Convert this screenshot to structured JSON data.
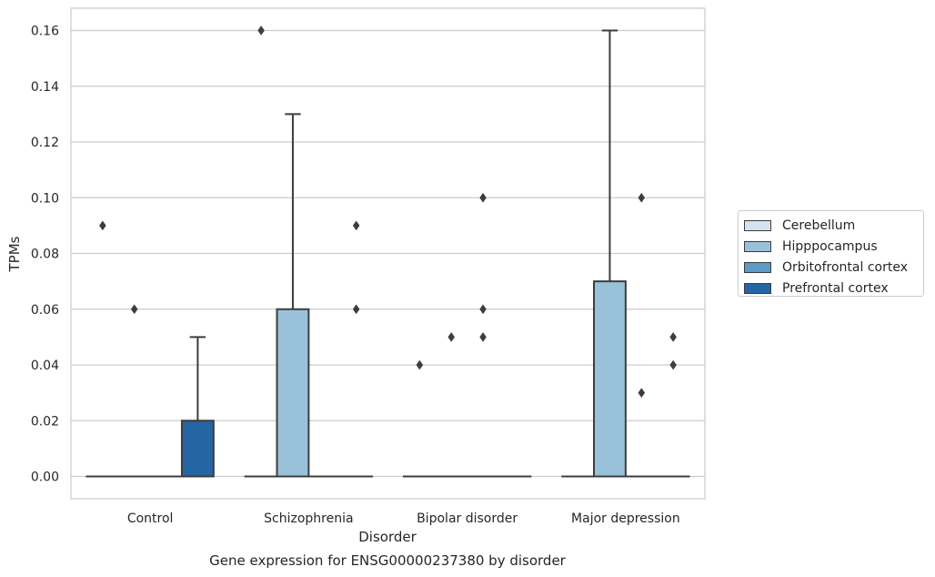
{
  "chart_data": {
    "type": "box",
    "title": "Gene expression for ENSG00000237380 by disorder",
    "xlabel": "Disorder",
    "ylabel": "TPMs",
    "ylim": [
      -0.008,
      0.168
    ],
    "yticks": [
      0.0,
      0.02,
      0.04,
      0.06,
      0.08,
      0.1,
      0.12,
      0.14,
      0.16
    ],
    "ytick_labels": [
      "0.00",
      "0.02",
      "0.04",
      "0.06",
      "0.08",
      "0.10",
      "0.12",
      "0.14",
      "0.16"
    ],
    "grid": "horizontal",
    "legend_position": "right",
    "categories": [
      "Control",
      "Schizophrenia",
      "Bipolar disorder",
      "Major depression"
    ],
    "series": [
      {
        "name": "Cerebellum",
        "color": "#d3e3f1",
        "boxes": [
          {
            "q1": 0.0,
            "median": 0.0,
            "q3": 0.0,
            "whisker_low": 0.0,
            "whisker_high": 0.0,
            "outliers": [
              0.09
            ]
          },
          {
            "q1": 0.0,
            "median": 0.0,
            "q3": 0.0,
            "whisker_low": 0.0,
            "whisker_high": 0.0,
            "outliers": [
              0.16
            ]
          },
          {
            "q1": 0.0,
            "median": 0.0,
            "q3": 0.0,
            "whisker_low": 0.0,
            "whisker_high": 0.0,
            "outliers": [
              0.04
            ]
          },
          {
            "q1": 0.0,
            "median": 0.0,
            "q3": 0.0,
            "whisker_low": 0.0,
            "whisker_high": 0.0,
            "outliers": []
          }
        ]
      },
      {
        "name": "Hipppocampus",
        "color": "#9ac1da",
        "boxes": [
          {
            "q1": 0.0,
            "median": 0.0,
            "q3": 0.0,
            "whisker_low": 0.0,
            "whisker_high": 0.0,
            "outliers": [
              0.06
            ]
          },
          {
            "q1": 0.0,
            "median": 0.0,
            "q3": 0.06,
            "whisker_low": 0.0,
            "whisker_high": 0.13,
            "outliers": []
          },
          {
            "q1": 0.0,
            "median": 0.0,
            "q3": 0.0,
            "whisker_low": 0.0,
            "whisker_high": 0.0,
            "outliers": [
              0.05
            ]
          },
          {
            "q1": 0.0,
            "median": 0.0,
            "q3": 0.07,
            "whisker_low": 0.0,
            "whisker_high": 0.16,
            "outliers": []
          }
        ]
      },
      {
        "name": "Orbitofrontal cortex",
        "color": "#5a9bc7",
        "boxes": [
          {
            "q1": 0.0,
            "median": 0.0,
            "q3": 0.0,
            "whisker_low": 0.0,
            "whisker_high": 0.0,
            "outliers": []
          },
          {
            "q1": 0.0,
            "median": 0.0,
            "q3": 0.0,
            "whisker_low": 0.0,
            "whisker_high": 0.0,
            "outliers": []
          },
          {
            "q1": 0.0,
            "median": 0.0,
            "q3": 0.0,
            "whisker_low": 0.0,
            "whisker_high": 0.0,
            "outliers": [
              0.05,
              0.06,
              0.1
            ]
          },
          {
            "q1": 0.0,
            "median": 0.0,
            "q3": 0.0,
            "whisker_low": 0.0,
            "whisker_high": 0.0,
            "outliers": [
              0.03,
              0.1
            ]
          }
        ]
      },
      {
        "name": "Prefrontal cortex",
        "color": "#2565a3",
        "boxes": [
          {
            "q1": 0.0,
            "median": 0.0,
            "q3": 0.02,
            "whisker_low": 0.0,
            "whisker_high": 0.05,
            "outliers": []
          },
          {
            "q1": 0.0,
            "median": 0.0,
            "q3": 0.0,
            "whisker_low": 0.0,
            "whisker_high": 0.0,
            "outliers": [
              0.06,
              0.09
            ]
          },
          {
            "q1": 0.0,
            "median": 0.0,
            "q3": 0.0,
            "whisker_low": 0.0,
            "whisker_high": 0.0,
            "outliers": []
          },
          {
            "q1": 0.0,
            "median": 0.0,
            "q3": 0.0,
            "whisker_low": 0.0,
            "whisker_high": 0.0,
            "outliers": [
              0.04,
              0.05
            ]
          }
        ]
      }
    ]
  }
}
